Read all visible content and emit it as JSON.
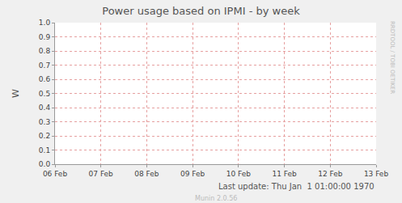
{
  "chart_data": {
    "type": "line",
    "title": "Power usage based on IPMI - by week",
    "y_label": "W",
    "categories": [
      "06 Feb",
      "07 Feb",
      "08 Feb",
      "09 Feb",
      "10 Feb",
      "11 Feb",
      "12 Feb",
      "13 Feb"
    ],
    "values": [
      null,
      null,
      null,
      null,
      null,
      null,
      null,
      null
    ],
    "ylim": [
      0,
      1
    ],
    "yticks": [
      {
        "value": 0,
        "label": "0.0"
      },
      0.1,
      0.2,
      0.3,
      0.4,
      0.5,
      0.6,
      0.7,
      0.8,
      0.9,
      {
        "value": 1,
        "label": "1.0"
      }
    ],
    "grid": true,
    "annotations": [
      "Last update: Thu Jan  1 01:00:00 1970",
      "Munin 2.0.56",
      "RRDTOOL / TOBI OETIKER"
    ]
  }
}
